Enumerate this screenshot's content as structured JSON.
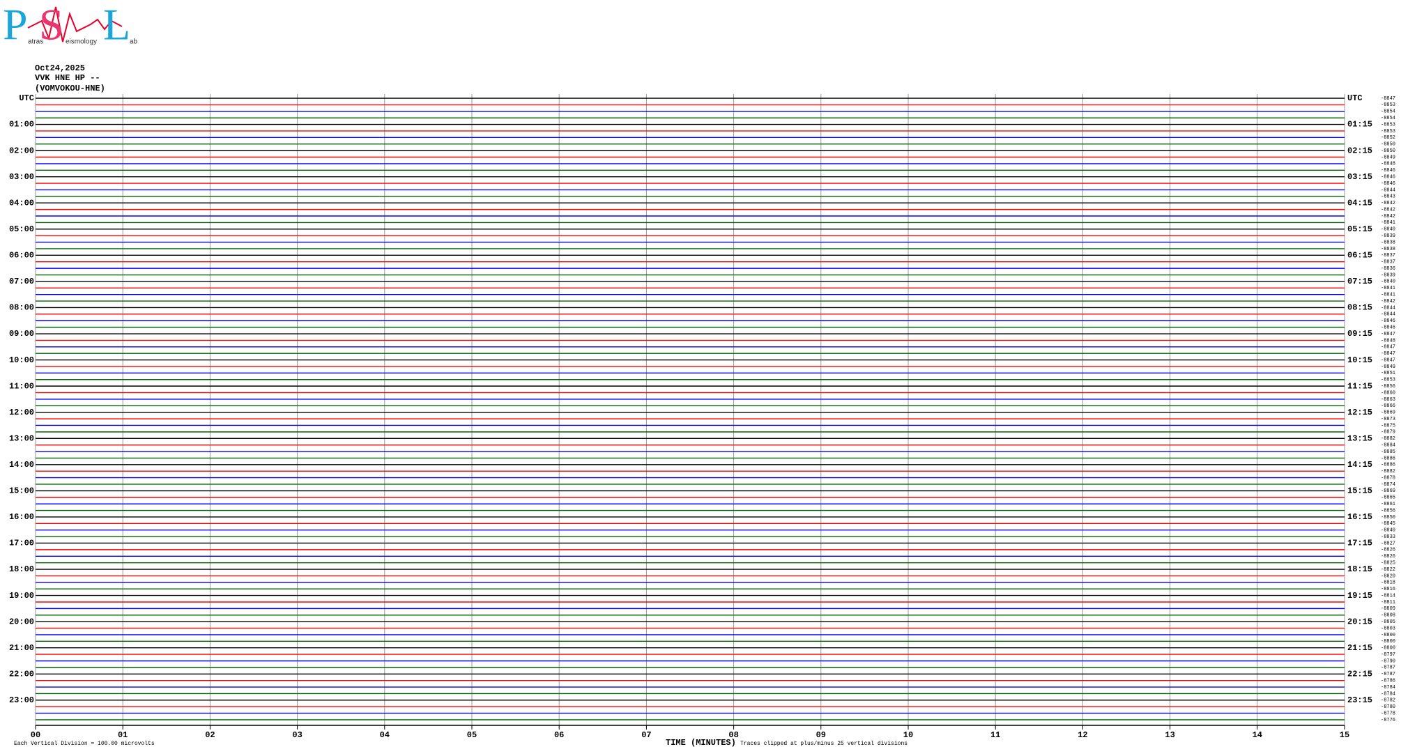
{
  "logo": {
    "letters": [
      "P",
      "S",
      "L"
    ],
    "words": [
      "atras",
      "eismology",
      "ab"
    ]
  },
  "header": {
    "date": "Oct24,2025",
    "station": "VVK HNE HP --",
    "site": "(VOMVOKOU-HNE)"
  },
  "left_labels": [
    "UTC",
    "01:00",
    "02:00",
    "03:00",
    "04:00",
    "05:00",
    "06:00",
    "07:00",
    "08:00",
    "09:00",
    "10:00",
    "11:00",
    "12:00",
    "13:00",
    "14:00",
    "15:00",
    "16:00",
    "17:00",
    "18:00",
    "19:00",
    "20:00",
    "21:00",
    "22:00",
    "23:00"
  ],
  "right_labels": [
    "UTC",
    "01:15",
    "02:15",
    "03:15",
    "04:15",
    "05:15",
    "06:15",
    "07:15",
    "08:15",
    "09:15",
    "10:15",
    "11:15",
    "12:15",
    "13:15",
    "14:15",
    "15:15",
    "16:15",
    "17:15",
    "18:15",
    "19:15",
    "20:15",
    "21:15",
    "22:15",
    "23:15"
  ],
  "trace_offsets": [
    -8847,
    -8853,
    -8854,
    -8854,
    -8853,
    -8853,
    -8852,
    -8850,
    -8850,
    -8849,
    -8848,
    -8846,
    -8846,
    -8846,
    -8844,
    -8843,
    -8842,
    -8842,
    -8842,
    -8841,
    -8840,
    -8839,
    -8838,
    -8838,
    -8837,
    -8837,
    -8836,
    -8839,
    -8840,
    -8841,
    -8841,
    -8842,
    -8844,
    -8844,
    -8846,
    -8846,
    -8847,
    -8848,
    -8847,
    -8847,
    -8847,
    -8849,
    -8851,
    -8853,
    -8856,
    -8860,
    -8863,
    -8866,
    -8869,
    -8873,
    -8875,
    -8879,
    -8882,
    -8884,
    -8885,
    -8886,
    -8886,
    -8882,
    -8878,
    -8874,
    -8869,
    -8865,
    -8861,
    -8856,
    -8850,
    -8845,
    -8840,
    -8833,
    -8827,
    -8826,
    -8826,
    -8825,
    -8822,
    -8820,
    -8818,
    -8816,
    -8814,
    -8811,
    -8809,
    -8808,
    -8805,
    -8803,
    -8800,
    -8800,
    -8800,
    -8797,
    -8790,
    -8787,
    -8787,
    -8786,
    -8784,
    -8784,
    -8782,
    -8780,
    -8778,
    -8776
  ],
  "trace_colors": [
    "#000000",
    "#ff0000",
    "#0000ff",
    "#006400"
  ],
  "time_ticks": [
    "00",
    "01",
    "02",
    "03",
    "04",
    "05",
    "06",
    "07",
    "08",
    "09",
    "10",
    "11",
    "12",
    "13",
    "14",
    "15"
  ],
  "x_axis_label": "TIME (MINUTES)",
  "footer": {
    "scale_note": "Each Vertical Division =  100.00 microvolts",
    "clip_note": "Traces clipped at plus/minus 25 vertical divisions"
  }
}
